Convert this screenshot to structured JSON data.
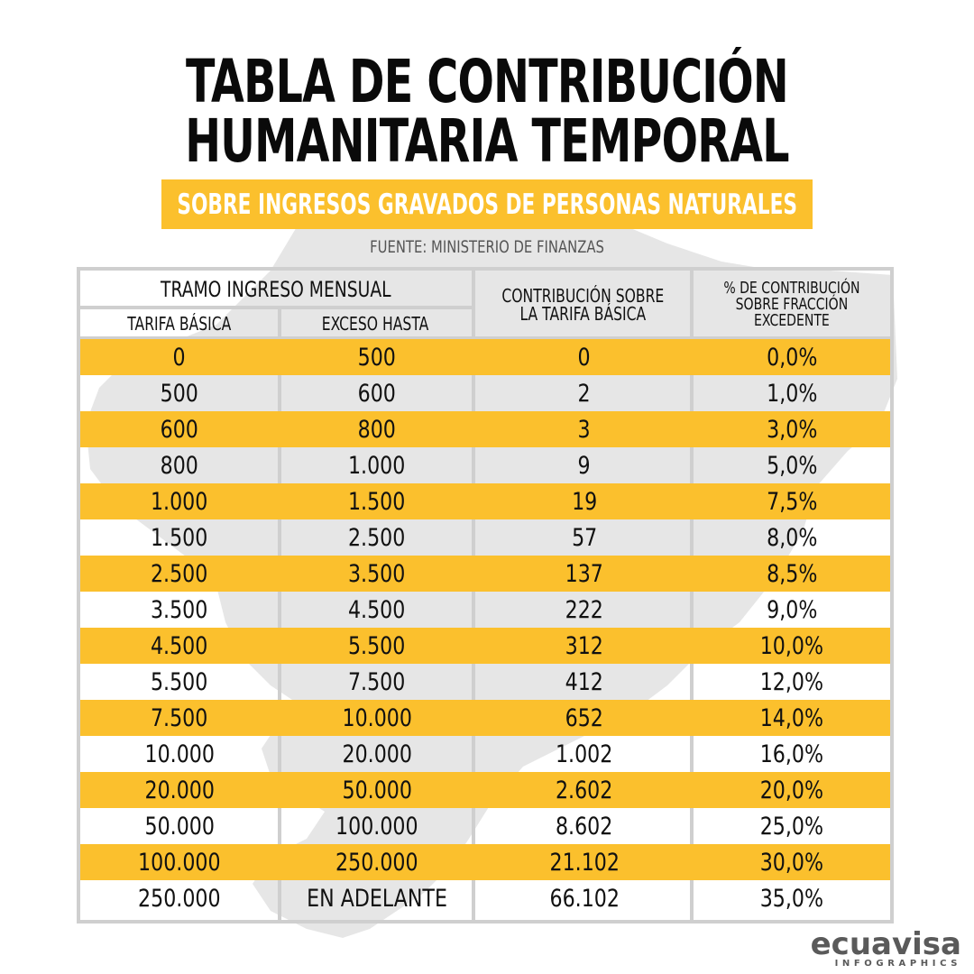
{
  "title_line1": "TABLA DE CONTRIBUCIÓN",
  "title_line2": "HUMANITARIA TEMPORAL",
  "subtitle": "SOBRE INGRESOS GRAVADOS DE PERSONAS NATURALES",
  "source": "FUENTE: MINISTERIO DE FINANZAS",
  "colors": {
    "accent_yellow": "#fbc02d",
    "title_black": "#0a0a0a",
    "map_gray": "#e6e6e6",
    "border_gray": "#cfcfcf",
    "logo_gray": "#5a5a5a"
  },
  "table": {
    "group_header": "TRAMO INGRESO MENSUAL",
    "col_basic": "TARIFA BÁSICA",
    "col_excess": "EXCESO HASTA",
    "col_contrib_line1": "CONTRIBUCIÓN SOBRE",
    "col_contrib_line2": "LA TARIFA BÁSICA",
    "col_pct_line1": "% DE CONTRIBUCIÓN",
    "col_pct_line2": "SOBRE FRACCIÓN",
    "col_pct_line3": "EXCEDENTE",
    "rows": [
      {
        "basic": "0",
        "excess": "500",
        "contrib": "0",
        "pct": "0,0%"
      },
      {
        "basic": "500",
        "excess": "600",
        "contrib": "2",
        "pct": "1,0%"
      },
      {
        "basic": "600",
        "excess": "800",
        "contrib": "3",
        "pct": "3,0%"
      },
      {
        "basic": "800",
        "excess": "1.000",
        "contrib": "9",
        "pct": "5,0%"
      },
      {
        "basic": "1.000",
        "excess": "1.500",
        "contrib": "19",
        "pct": "7,5%"
      },
      {
        "basic": "1.500",
        "excess": "2.500",
        "contrib": "57",
        "pct": "8,0%"
      },
      {
        "basic": "2.500",
        "excess": "3.500",
        "contrib": "137",
        "pct": "8,5%"
      },
      {
        "basic": "3.500",
        "excess": "4.500",
        "contrib": "222",
        "pct": "9,0%"
      },
      {
        "basic": "4.500",
        "excess": "5.500",
        "contrib": "312",
        "pct": "10,0%"
      },
      {
        "basic": "5.500",
        "excess": "7.500",
        "contrib": "412",
        "pct": "12,0%"
      },
      {
        "basic": "7.500",
        "excess": "10.000",
        "contrib": "652",
        "pct": "14,0%"
      },
      {
        "basic": "10.000",
        "excess": "20.000",
        "contrib": "1.002",
        "pct": "16,0%"
      },
      {
        "basic": "20.000",
        "excess": "50.000",
        "contrib": "2.602",
        "pct": "20,0%"
      },
      {
        "basic": "50.000",
        "excess": "100.000",
        "contrib": "8.602",
        "pct": "25,0%"
      },
      {
        "basic": "100.000",
        "excess": "250.000",
        "contrib": "21.102",
        "pct": "30,0%"
      },
      {
        "basic": "250.000",
        "excess": "EN ADELANTE",
        "contrib": "66.102",
        "pct": "35,0%"
      }
    ]
  },
  "logo": {
    "main": "ecuavisa",
    "sub": "INFOGRAPHICS"
  }
}
